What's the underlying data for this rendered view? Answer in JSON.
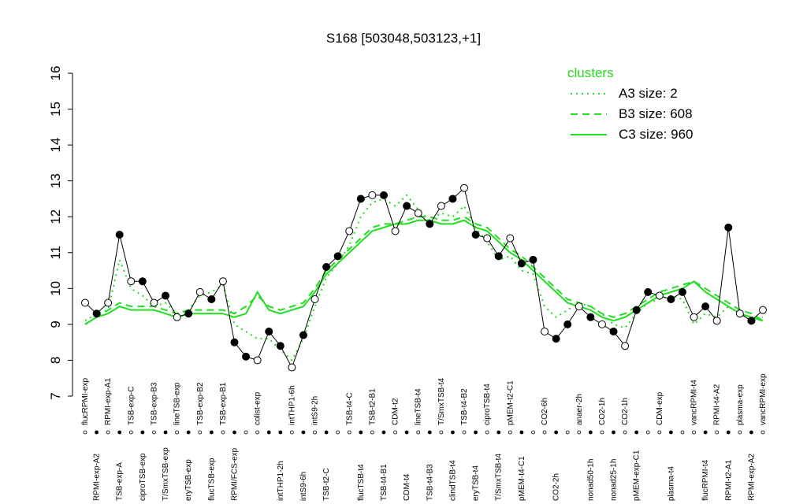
{
  "chart_data": {
    "type": "line",
    "title": "S168 [503048,503123,+1]",
    "categories": [
      "flucRPMI-exp",
      "RPMI-exp-A2",
      "RPMI-exp-A1",
      "TSB-exp-A",
      "TSB-exp-C",
      "ciproTSB-exp",
      "TSB-exp-B3",
      "T/SmxTSB-exp",
      "lineTSB-exp",
      "eryTSB-exp",
      "TSB-exp-B2",
      "flucTSB-exp",
      "TSB-exp-B1",
      "RPMI/FCS-exp",
      null,
      "colist-exp",
      null,
      "intTHP1-2h",
      "intTHP1-6h",
      "intS9-6h",
      "intS9-2h",
      "TSB-t2-C",
      null,
      "TSB-t4-C",
      "flucTSB-t4",
      "TSB-t2-B1",
      "TSB-t4-B1",
      "CDM-t2",
      "CDM-t4",
      "lineTSB-t4",
      "TSB-t4-B3",
      "T/SmxTSB-t4",
      "clindTSB-t4",
      "TSB-t4-B2",
      "eryTSB-t4",
      "ciproTSB-t4",
      "T/SmxTSB-t4",
      "pMEM-t2-C1",
      "pMEM-t4-C1",
      null,
      "CO2-6h",
      "CO2-2h",
      null,
      "anaer-2h",
      "nonad50-1h",
      "CO2-1h",
      "nonad25-1h",
      "CO2-1h",
      "pMEM-exp-C1",
      null,
      "CDM-exp",
      "plasma-t4",
      null,
      "vancRPMI-t4",
      "flucRPMI-t4",
      "RPMI-t4-A2",
      "RPMI-t2-A1",
      "plasma-exp",
      "RPMI-exp-A2",
      "vancRPMI-exp"
    ],
    "values": [
      9.6,
      9.3,
      9.6,
      11.5,
      10.2,
      10.2,
      9.6,
      9.8,
      9.2,
      9.3,
      9.9,
      9.7,
      10.2,
      8.5,
      8.1,
      8.0,
      8.8,
      8.4,
      7.8,
      8.7,
      9.7,
      10.6,
      10.9,
      11.6,
      12.5,
      12.6,
      12.6,
      11.6,
      12.3,
      12.1,
      11.8,
      12.3,
      12.5,
      12.8,
      11.5,
      11.4,
      10.9,
      11.4,
      10.7,
      10.8,
      8.8,
      8.6,
      9.0,
      9.5,
      9.2,
      9.0,
      8.8,
      8.4,
      9.4,
      9.9,
      9.8,
      9.7,
      9.9,
      9.2,
      9.5,
      9.1,
      11.7,
      9.3,
      9.1,
      9.4
    ],
    "color": "#000000",
    "series": [
      {
        "name": "A3 size: 2",
        "color": "#22dd22",
        "linestyle": "dotted",
        "values": [
          9.1,
          9.3,
          9.4,
          10.8,
          10.0,
          9.8,
          9.5,
          9.6,
          9.3,
          9.4,
          9.8,
          9.9,
          10.1,
          9.0,
          8.8,
          8.6,
          8.6,
          8.3,
          8.0,
          8.6,
          9.5,
          10.3,
          10.7,
          11.2,
          12.0,
          12.4,
          12.5,
          12.3,
          12.6,
          12.2,
          11.9,
          12.1,
          12.0,
          12.3,
          11.7,
          11.3,
          10.8,
          10.9,
          10.5,
          10.4,
          9.5,
          9.2,
          9.4,
          9.6,
          9.5,
          9.3,
          9.0,
          8.9,
          9.3,
          9.6,
          9.7,
          9.8,
          9.7,
          9.0,
          9.3,
          9.2,
          9.5,
          9.3,
          9.2,
          9.2
        ]
      },
      {
        "name": "B3 size: 608",
        "color": "#22dd22",
        "linestyle": "dashed",
        "values": [
          9.0,
          9.2,
          9.4,
          9.6,
          9.5,
          9.5,
          9.5,
          9.4,
          9.3,
          9.4,
          9.4,
          9.4,
          9.4,
          9.3,
          9.5,
          9.8,
          9.5,
          9.4,
          9.5,
          9.6,
          10.0,
          10.5,
          10.8,
          11.1,
          11.4,
          11.7,
          11.8,
          11.8,
          11.9,
          12.0,
          12.0,
          11.9,
          11.9,
          12.0,
          11.8,
          11.7,
          11.4,
          11.1,
          10.9,
          10.6,
          10.3,
          10.0,
          9.7,
          9.6,
          9.5,
          9.3,
          9.2,
          9.3,
          9.5,
          9.7,
          9.9,
          10.0,
          10.1,
          10.2,
          10.0,
          9.8,
          9.6,
          9.4,
          9.3,
          9.1
        ]
      },
      {
        "name": "C3 size: 960",
        "color": "#22dd22",
        "linestyle": "solid",
        "values": [
          9.0,
          9.2,
          9.3,
          9.5,
          9.4,
          9.4,
          9.4,
          9.3,
          9.2,
          9.3,
          9.3,
          9.3,
          9.3,
          9.2,
          9.3,
          9.9,
          9.4,
          9.3,
          9.4,
          9.5,
          9.9,
          10.4,
          10.7,
          11.0,
          11.3,
          11.6,
          11.7,
          11.8,
          11.8,
          11.9,
          11.9,
          11.8,
          11.8,
          11.9,
          11.7,
          11.6,
          11.3,
          11.0,
          10.8,
          10.5,
          10.2,
          9.9,
          9.6,
          9.5,
          9.4,
          9.2,
          9.1,
          9.2,
          9.4,
          9.6,
          9.8,
          9.9,
          10.0,
          10.2,
          9.9,
          9.7,
          9.5,
          9.3,
          9.2,
          9.1
        ]
      }
    ],
    "legend_title": "clusters",
    "legend": "topright",
    "ylim": [
      7,
      16
    ],
    "yticks": [
      7,
      8,
      9,
      10,
      11,
      12,
      13,
      14,
      15,
      16
    ]
  }
}
